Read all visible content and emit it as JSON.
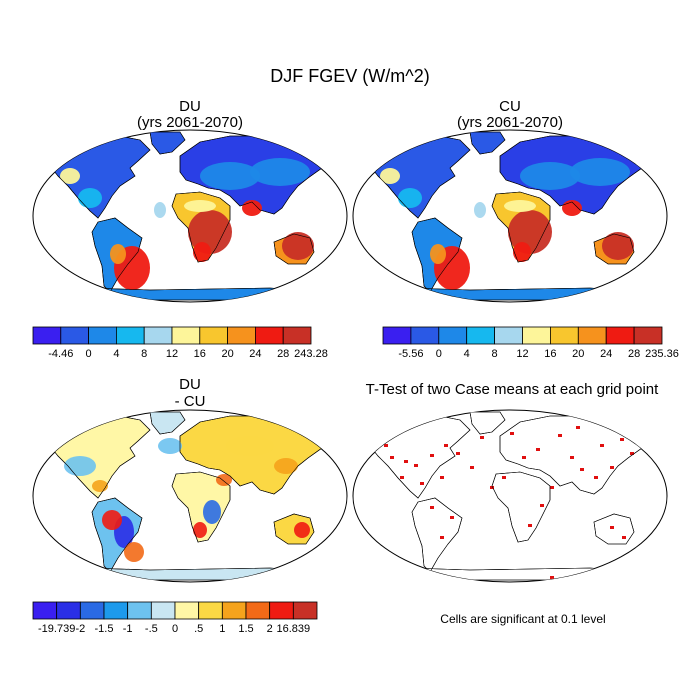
{
  "chart_data": {
    "type": "heatmap",
    "title": "DJF FGEV (W/m^2)",
    "panels": [
      {
        "id": "du",
        "title": "DU",
        "subtitle": "(yrs 2061-2070)",
        "colorbar": {
          "labels": [
            "-4.46",
            "0",
            "4",
            "8",
            "12",
            "16",
            "20",
            "24",
            "28",
            "243.28"
          ],
          "colors": [
            "#3a1ff0",
            "#2a59e6",
            "#1e88e8",
            "#16b8ef",
            "#a7d7ee",
            "#fdf59a",
            "#f8c62e",
            "#f6921d",
            "#ef1b12",
            "#c83026"
          ]
        }
      },
      {
        "id": "cu",
        "title": "CU",
        "subtitle": "(yrs 2061-2070)",
        "colorbar": {
          "labels": [
            "-5.56",
            "0",
            "4",
            "8",
            "12",
            "16",
            "20",
            "24",
            "28",
            "235.36"
          ],
          "colors": [
            "#3a1ff0",
            "#2a59e6",
            "#1e88e8",
            "#16b8ef",
            "#a7d7ee",
            "#fdf59a",
            "#f8c62e",
            "#f6921d",
            "#ef1b12",
            "#c83026"
          ]
        }
      },
      {
        "id": "diff",
        "title": "DU",
        "subtitle": "- CU",
        "colorbar": {
          "labels": [
            "-19.739",
            "-2",
            "-1.5",
            "-1",
            "-.5",
            "0",
            ".5",
            "1",
            "1.5",
            "2",
            "16.839"
          ],
          "colors": [
            "#3a1ff0",
            "#2a2fe6",
            "#2a6ae4",
            "#1d9aec",
            "#6dc2ef",
            "#c9e6f2",
            "#fff7a6",
            "#fbd844",
            "#f5a31c",
            "#f26a17",
            "#ef1b12",
            "#c83026"
          ]
        }
      },
      {
        "id": "ttest",
        "title": "T-Test of two Case means at each grid point",
        "note": "Cells are significant at 0.1 level",
        "significant_color": "#e01010"
      }
    ]
  }
}
